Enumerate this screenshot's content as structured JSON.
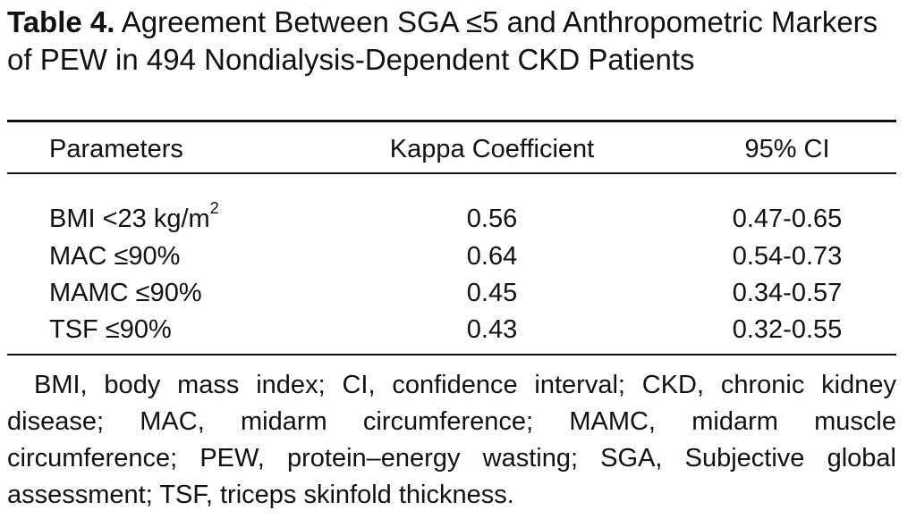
{
  "table": {
    "label": "Table 4.",
    "title": "Agreement Between SGA ≤5 and Anthropometric Markers of PEW in 494 Nondialysis-Dependent CKD Patients",
    "columns": [
      "Parameters",
      "Kappa Coefficient",
      "95% CI"
    ],
    "rows": [
      {
        "parameter": "BMI <23 kg/m",
        "parameter_sup": "2",
        "kappa": "0.56",
        "ci": "0.47-0.65"
      },
      {
        "parameter": "MAC ≤90%",
        "kappa": "0.64",
        "ci": "0.54-0.73"
      },
      {
        "parameter": "MAMC ≤90%",
        "kappa": "0.45",
        "ci": "0.34-0.57"
      },
      {
        "parameter": "TSF ≤90%",
        "kappa": "0.43",
        "ci": "0.32-0.55"
      }
    ],
    "footnote": "BMI, body mass index; CI, confidence interval; CKD, chronic kid­ney disease; MAC, midarm circumference; MAMC, midarm muscle circumference; PEW, protein–energy wasting; SGA, Subjective global assessment; TSF, triceps skinfold thickness."
  }
}
